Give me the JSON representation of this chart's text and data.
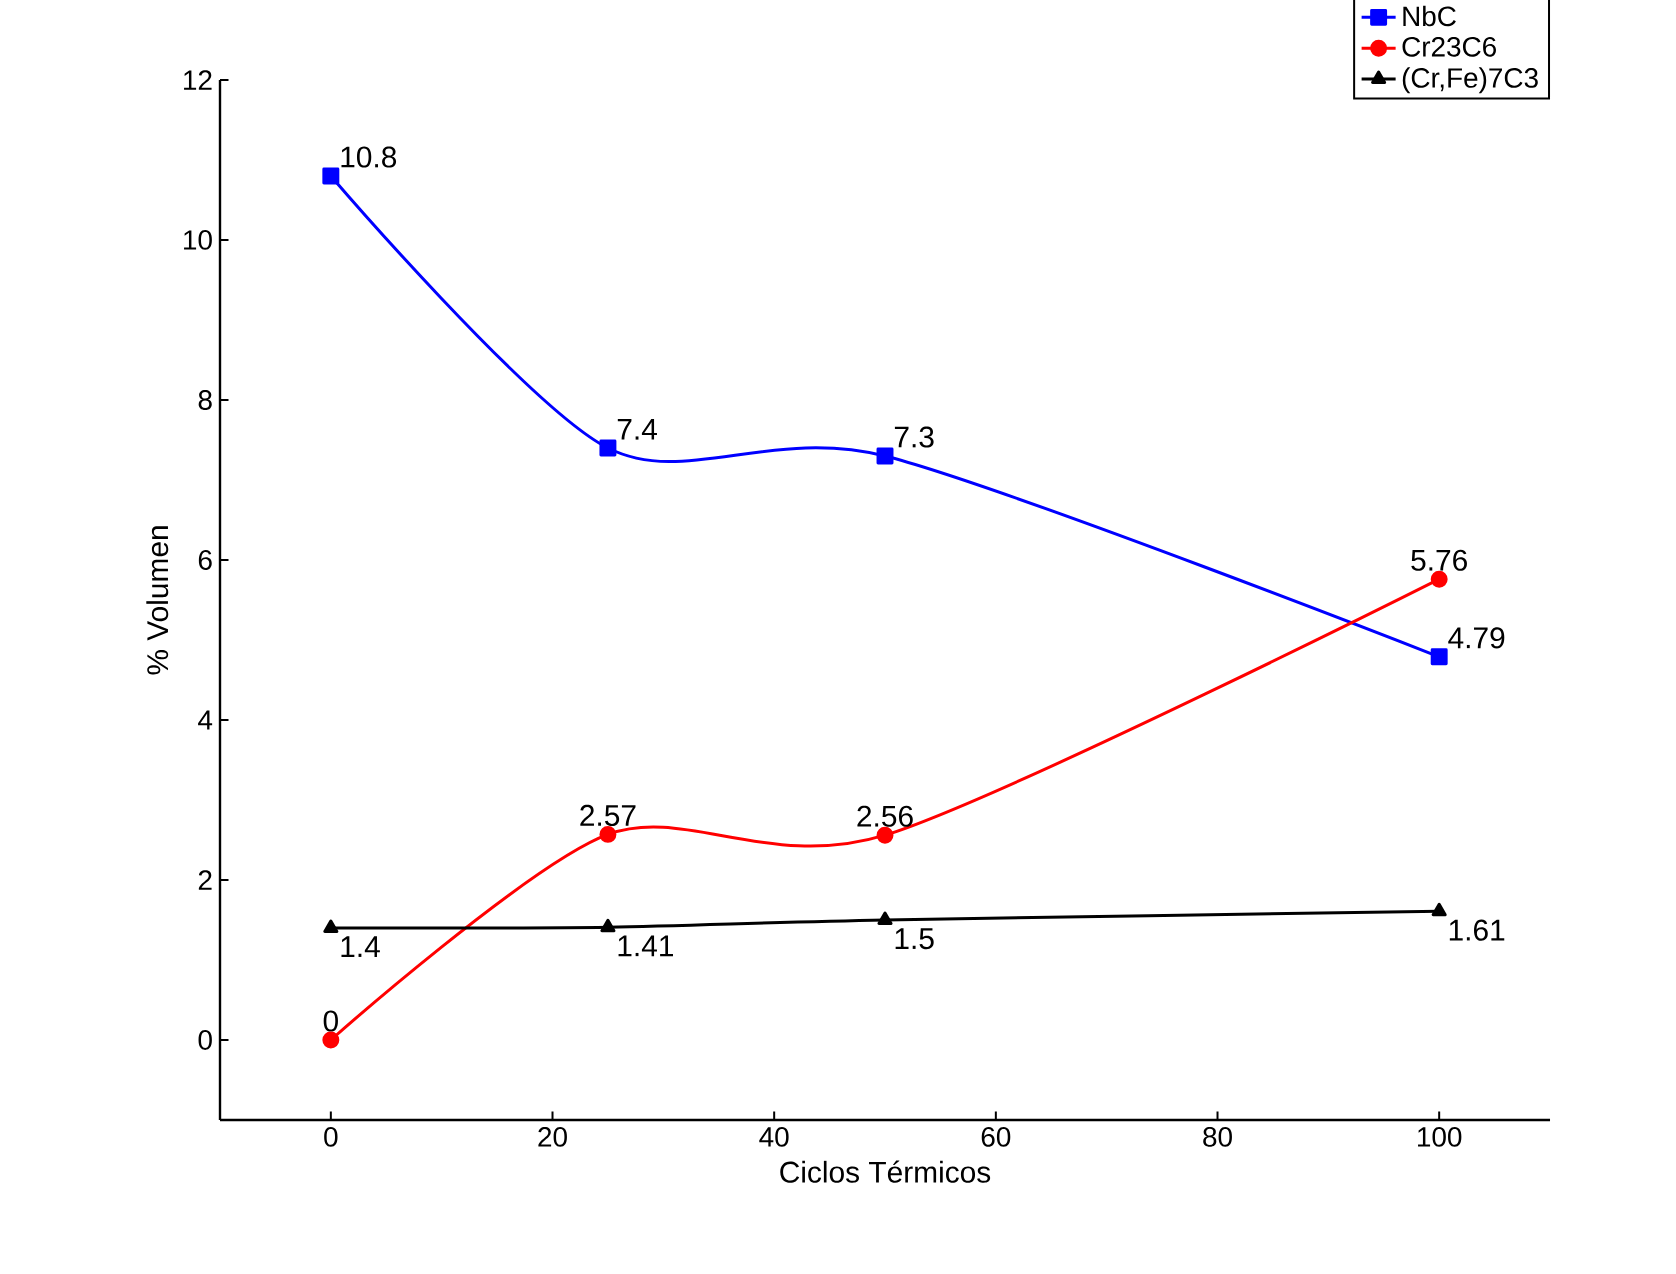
{
  "chart_data": {
    "type": "line",
    "xlabel": "Ciclos Térmicos",
    "ylabel": "% Volumen",
    "x": [
      0,
      25,
      50,
      100
    ],
    "series": [
      {
        "name": "NbC",
        "color": "#0000ff",
        "marker": "square",
        "values": [
          10.8,
          7.4,
          7.3,
          4.79
        ]
      },
      {
        "name": "Cr23C6",
        "color": "#ff0000",
        "marker": "circle",
        "values": [
          0,
          2.57,
          2.56,
          5.76
        ]
      },
      {
        "name": "(Cr,Fe)7C3",
        "color": "#000000",
        "marker": "triangle",
        "values": [
          1.4,
          1.41,
          1.5,
          1.61
        ]
      }
    ],
    "xlim": [
      -10,
      110
    ],
    "ylim": [
      -1,
      12
    ],
    "xticks": [
      0,
      20,
      40,
      60,
      80,
      100
    ],
    "yticks": [
      0,
      2,
      4,
      6,
      8,
      10,
      12
    ],
    "data_labels": true,
    "legend": "top right",
    "grid": false,
    "line_style": "solid"
  }
}
